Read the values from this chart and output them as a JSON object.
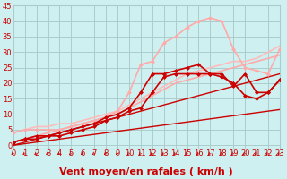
{
  "background_color": "#cff0f0",
  "grid_color": "#aacccc",
  "xlabel": "Vent moyen/en rafales ( km/h )",
  "xlim": [
    0,
    23
  ],
  "ylim": [
    -1,
    45
  ],
  "xticks": [
    0,
    1,
    2,
    3,
    4,
    5,
    6,
    7,
    8,
    9,
    10,
    11,
    12,
    13,
    14,
    15,
    16,
    17,
    18,
    19,
    20,
    21,
    22,
    23
  ],
  "yticks": [
    0,
    5,
    10,
    15,
    20,
    25,
    30,
    35,
    40,
    45
  ],
  "lines": [
    {
      "x": [
        0,
        1,
        2,
        3,
        4,
        5,
        6,
        7,
        8,
        9,
        10,
        11,
        12,
        13,
        14,
        15,
        16,
        17,
        18,
        19,
        20,
        21,
        22,
        23
      ],
      "y": [
        0,
        0.5,
        1.0,
        1.5,
        2.0,
        2.5,
        3.0,
        3.5,
        4.0,
        4.5,
        5.0,
        5.5,
        6.0,
        6.5,
        7.0,
        7.5,
        8.0,
        8.5,
        9.0,
        9.5,
        10.0,
        10.5,
        11.0,
        11.5
      ],
      "color": "#cc0000",
      "lw": 1.0,
      "marker": null
    },
    {
      "x": [
        0,
        1,
        2,
        3,
        4,
        5,
        6,
        7,
        8,
        9,
        10,
        11,
        12,
        13,
        14,
        15,
        16,
        17,
        18,
        19,
        20,
        21,
        22,
        23
      ],
      "y": [
        0,
        1.0,
        2.0,
        3.0,
        4.0,
        5.0,
        6.0,
        7.0,
        8.0,
        9.0,
        10.0,
        11.0,
        12.0,
        13.0,
        14.0,
        15.0,
        16.0,
        17.0,
        18.0,
        19.0,
        20.0,
        21.0,
        22.0,
        23.0
      ],
      "color": "#cc0000",
      "lw": 1.0,
      "marker": null
    },
    {
      "x": [
        0,
        1,
        2,
        3,
        4,
        5,
        6,
        7,
        8,
        9,
        10,
        11,
        12,
        13,
        14,
        15,
        16,
        17,
        18,
        19,
        20,
        21,
        22,
        23
      ],
      "y": [
        1,
        2,
        3,
        4,
        5,
        6,
        7,
        8,
        9,
        10,
        12,
        14,
        16,
        18,
        20,
        21,
        22,
        23,
        24,
        25,
        26,
        27,
        28,
        29
      ],
      "color": "#ffaaaa",
      "lw": 1.2,
      "marker": null
    },
    {
      "x": [
        0,
        1,
        2,
        3,
        4,
        5,
        6,
        7,
        8,
        9,
        10,
        11,
        12,
        13,
        14,
        15,
        16,
        17,
        18,
        19,
        20,
        21,
        22,
        23
      ],
      "y": [
        4,
        5,
        6,
        6,
        7,
        7,
        8,
        9,
        10,
        11,
        13,
        15,
        17,
        19,
        21,
        23,
        24,
        25,
        26,
        27,
        27,
        28,
        30,
        32
      ],
      "color": "#ffbbbb",
      "lw": 1.2,
      "marker": null
    },
    {
      "x": [
        0,
        1,
        2,
        3,
        4,
        5,
        6,
        7,
        8,
        9,
        10,
        11,
        12,
        13,
        14,
        15,
        16,
        17,
        18,
        19,
        20,
        21,
        22,
        23
      ],
      "y": [
        4,
        5,
        5,
        5,
        5,
        6,
        7,
        8,
        9,
        11,
        17,
        26,
        27,
        33,
        35,
        38,
        40,
        41,
        40,
        31,
        25,
        24,
        23,
        31
      ],
      "color": "#ffaaaa",
      "lw": 1.2,
      "marker": "D",
      "markersize": 2.0
    },
    {
      "x": [
        0,
        1,
        2,
        3,
        4,
        5,
        6,
        7,
        8,
        9,
        10,
        11,
        12,
        13,
        14,
        15,
        16,
        17,
        18,
        19,
        20,
        21,
        22,
        23
      ],
      "y": [
        1,
        2,
        3,
        3,
        4,
        5,
        6,
        7,
        9,
        10,
        12,
        17,
        23,
        23,
        24,
        25,
        26,
        23,
        22,
        20,
        16,
        15,
        17,
        21
      ],
      "color": "#cc0000",
      "lw": 1.2,
      "marker": "D",
      "markersize": 2.0
    },
    {
      "x": [
        0,
        1,
        2,
        3,
        4,
        5,
        6,
        7,
        8,
        9,
        10,
        11,
        12,
        13,
        14,
        15,
        16,
        17,
        18,
        19,
        20,
        21,
        22,
        23
      ],
      "y": [
        1,
        2,
        2,
        3,
        3,
        4,
        5,
        6,
        8,
        9,
        11,
        12,
        17,
        22,
        23,
        23,
        23,
        23,
        23,
        19,
        23,
        17,
        17,
        21
      ],
      "color": "#cc0000",
      "lw": 1.2,
      "marker": "D",
      "markersize": 2.0
    }
  ],
  "tick_label_color": "#cc0000",
  "xlabel_color": "#cc0000",
  "xlabel_fontsize": 8,
  "tick_fontsize": 6,
  "arrow_color": "#cc0000"
}
